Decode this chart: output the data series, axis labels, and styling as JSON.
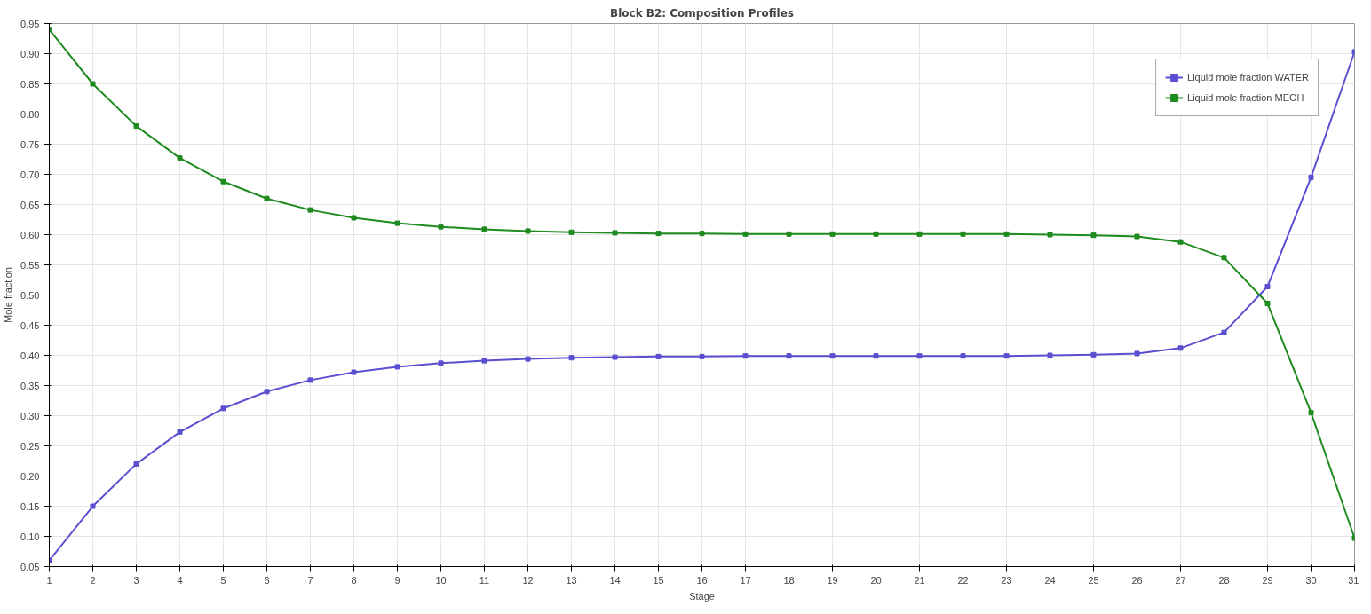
{
  "chart_data": {
    "type": "line",
    "title": "Block B2: Composition Profiles",
    "xlabel": "Stage",
    "ylabel": "Mole fraction",
    "x": [
      1,
      2,
      3,
      4,
      5,
      6,
      7,
      8,
      9,
      10,
      11,
      12,
      13,
      14,
      15,
      16,
      17,
      18,
      19,
      20,
      21,
      22,
      23,
      24,
      25,
      26,
      27,
      28,
      29,
      30,
      31
    ],
    "series": [
      {
        "name": "Liquid mole fraction WATER",
        "color": "#5a4fd0",
        "values": [
          0.06,
          0.15,
          0.22,
          0.273,
          0.312,
          0.34,
          0.359,
          0.372,
          0.381,
          0.387,
          0.391,
          0.394,
          0.396,
          0.397,
          0.398,
          0.398,
          0.399,
          0.399,
          0.399,
          0.399,
          0.399,
          0.399,
          0.399,
          0.4,
          0.401,
          0.403,
          0.412,
          0.438,
          0.514,
          0.695,
          0.903
        ]
      },
      {
        "name": "Liquid mole fraction MEOH",
        "color": "#1f8a1f",
        "values": [
          0.94,
          0.85,
          0.78,
          0.727,
          0.688,
          0.66,
          0.641,
          0.628,
          0.619,
          0.613,
          0.609,
          0.606,
          0.604,
          0.603,
          0.602,
          0.602,
          0.601,
          0.601,
          0.601,
          0.601,
          0.601,
          0.601,
          0.601,
          0.6,
          0.599,
          0.597,
          0.588,
          0.562,
          0.486,
          0.305,
          0.097
        ]
      }
    ],
    "xlim": [
      1,
      31
    ],
    "xticks": [
      1,
      2,
      3,
      4,
      5,
      6,
      7,
      8,
      9,
      10,
      11,
      12,
      13,
      14,
      15,
      16,
      17,
      18,
      19,
      20,
      21,
      22,
      23,
      24,
      25,
      26,
      27,
      28,
      29,
      30,
      31
    ],
    "ylim": [
      0.05,
      0.95
    ],
    "yticks": [
      {
        "value": 0.05,
        "label": "0.05"
      },
      {
        "value": 0.1,
        "label": "0.10"
      },
      {
        "value": 0.15,
        "label": "0.15"
      },
      {
        "value": 0.2,
        "label": "0.20"
      },
      {
        "value": 0.25,
        "label": "0.25"
      },
      {
        "value": 0.3,
        "label": "0.30"
      },
      {
        "value": 0.35,
        "label": "0.35"
      },
      {
        "value": 0.4,
        "label": "0.40"
      },
      {
        "value": 0.45,
        "label": "0.45"
      },
      {
        "value": 0.5,
        "label": "0.50"
      },
      {
        "value": 0.55,
        "label": "0.55"
      },
      {
        "value": 0.6,
        "label": "0.60"
      },
      {
        "value": 0.65,
        "label": "0.65"
      },
      {
        "value": 0.7,
        "label": "0.70"
      },
      {
        "value": 0.75,
        "label": "0.75"
      },
      {
        "value": 0.8,
        "label": "0.80"
      },
      {
        "value": 0.85,
        "label": "0.85"
      },
      {
        "value": 0.9,
        "label": "0.90"
      },
      {
        "value": 0.95,
        "label": "0.95"
      }
    ],
    "grid": true,
    "legend": "top right",
    "marker": "square",
    "line_style": "solid"
  }
}
